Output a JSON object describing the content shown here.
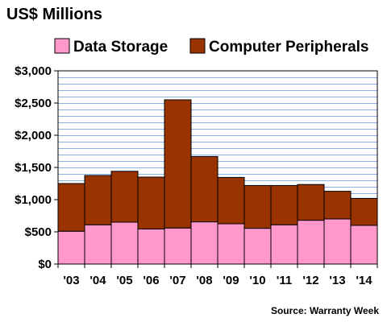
{
  "chart_data": {
    "type": "bar",
    "stacked": true,
    "title": "US$ Millions",
    "categories": [
      "'03",
      "'04",
      "'05",
      "'06",
      "'07",
      "'08",
      "'09",
      "'10",
      "'11",
      "'12",
      "'13",
      "'14"
    ],
    "series": [
      {
        "name": "Data Storage",
        "color": "#ff99cc",
        "values": [
          510,
          610,
          650,
          545,
          560,
          655,
          625,
          555,
          610,
          680,
          700,
          600
        ]
      },
      {
        "name": "Computer Peripherals",
        "color": "#993300",
        "values": [
          740,
          765,
          790,
          805,
          1990,
          1015,
          720,
          665,
          610,
          555,
          430,
          420
        ]
      }
    ],
    "ylim": [
      0,
      3000
    ],
    "yticks": [
      0,
      500,
      1000,
      1500,
      2000,
      2500,
      3000
    ],
    "ytick_labels": [
      "$0",
      "$500",
      "$1,000",
      "$1,500",
      "$2,000",
      "$2,500",
      "$3,000"
    ],
    "grid": true,
    "legend_position": "top",
    "source": "Source: Warranty Week",
    "plot_background": "#ffffff",
    "grid_color": "#8fb4e3"
  }
}
